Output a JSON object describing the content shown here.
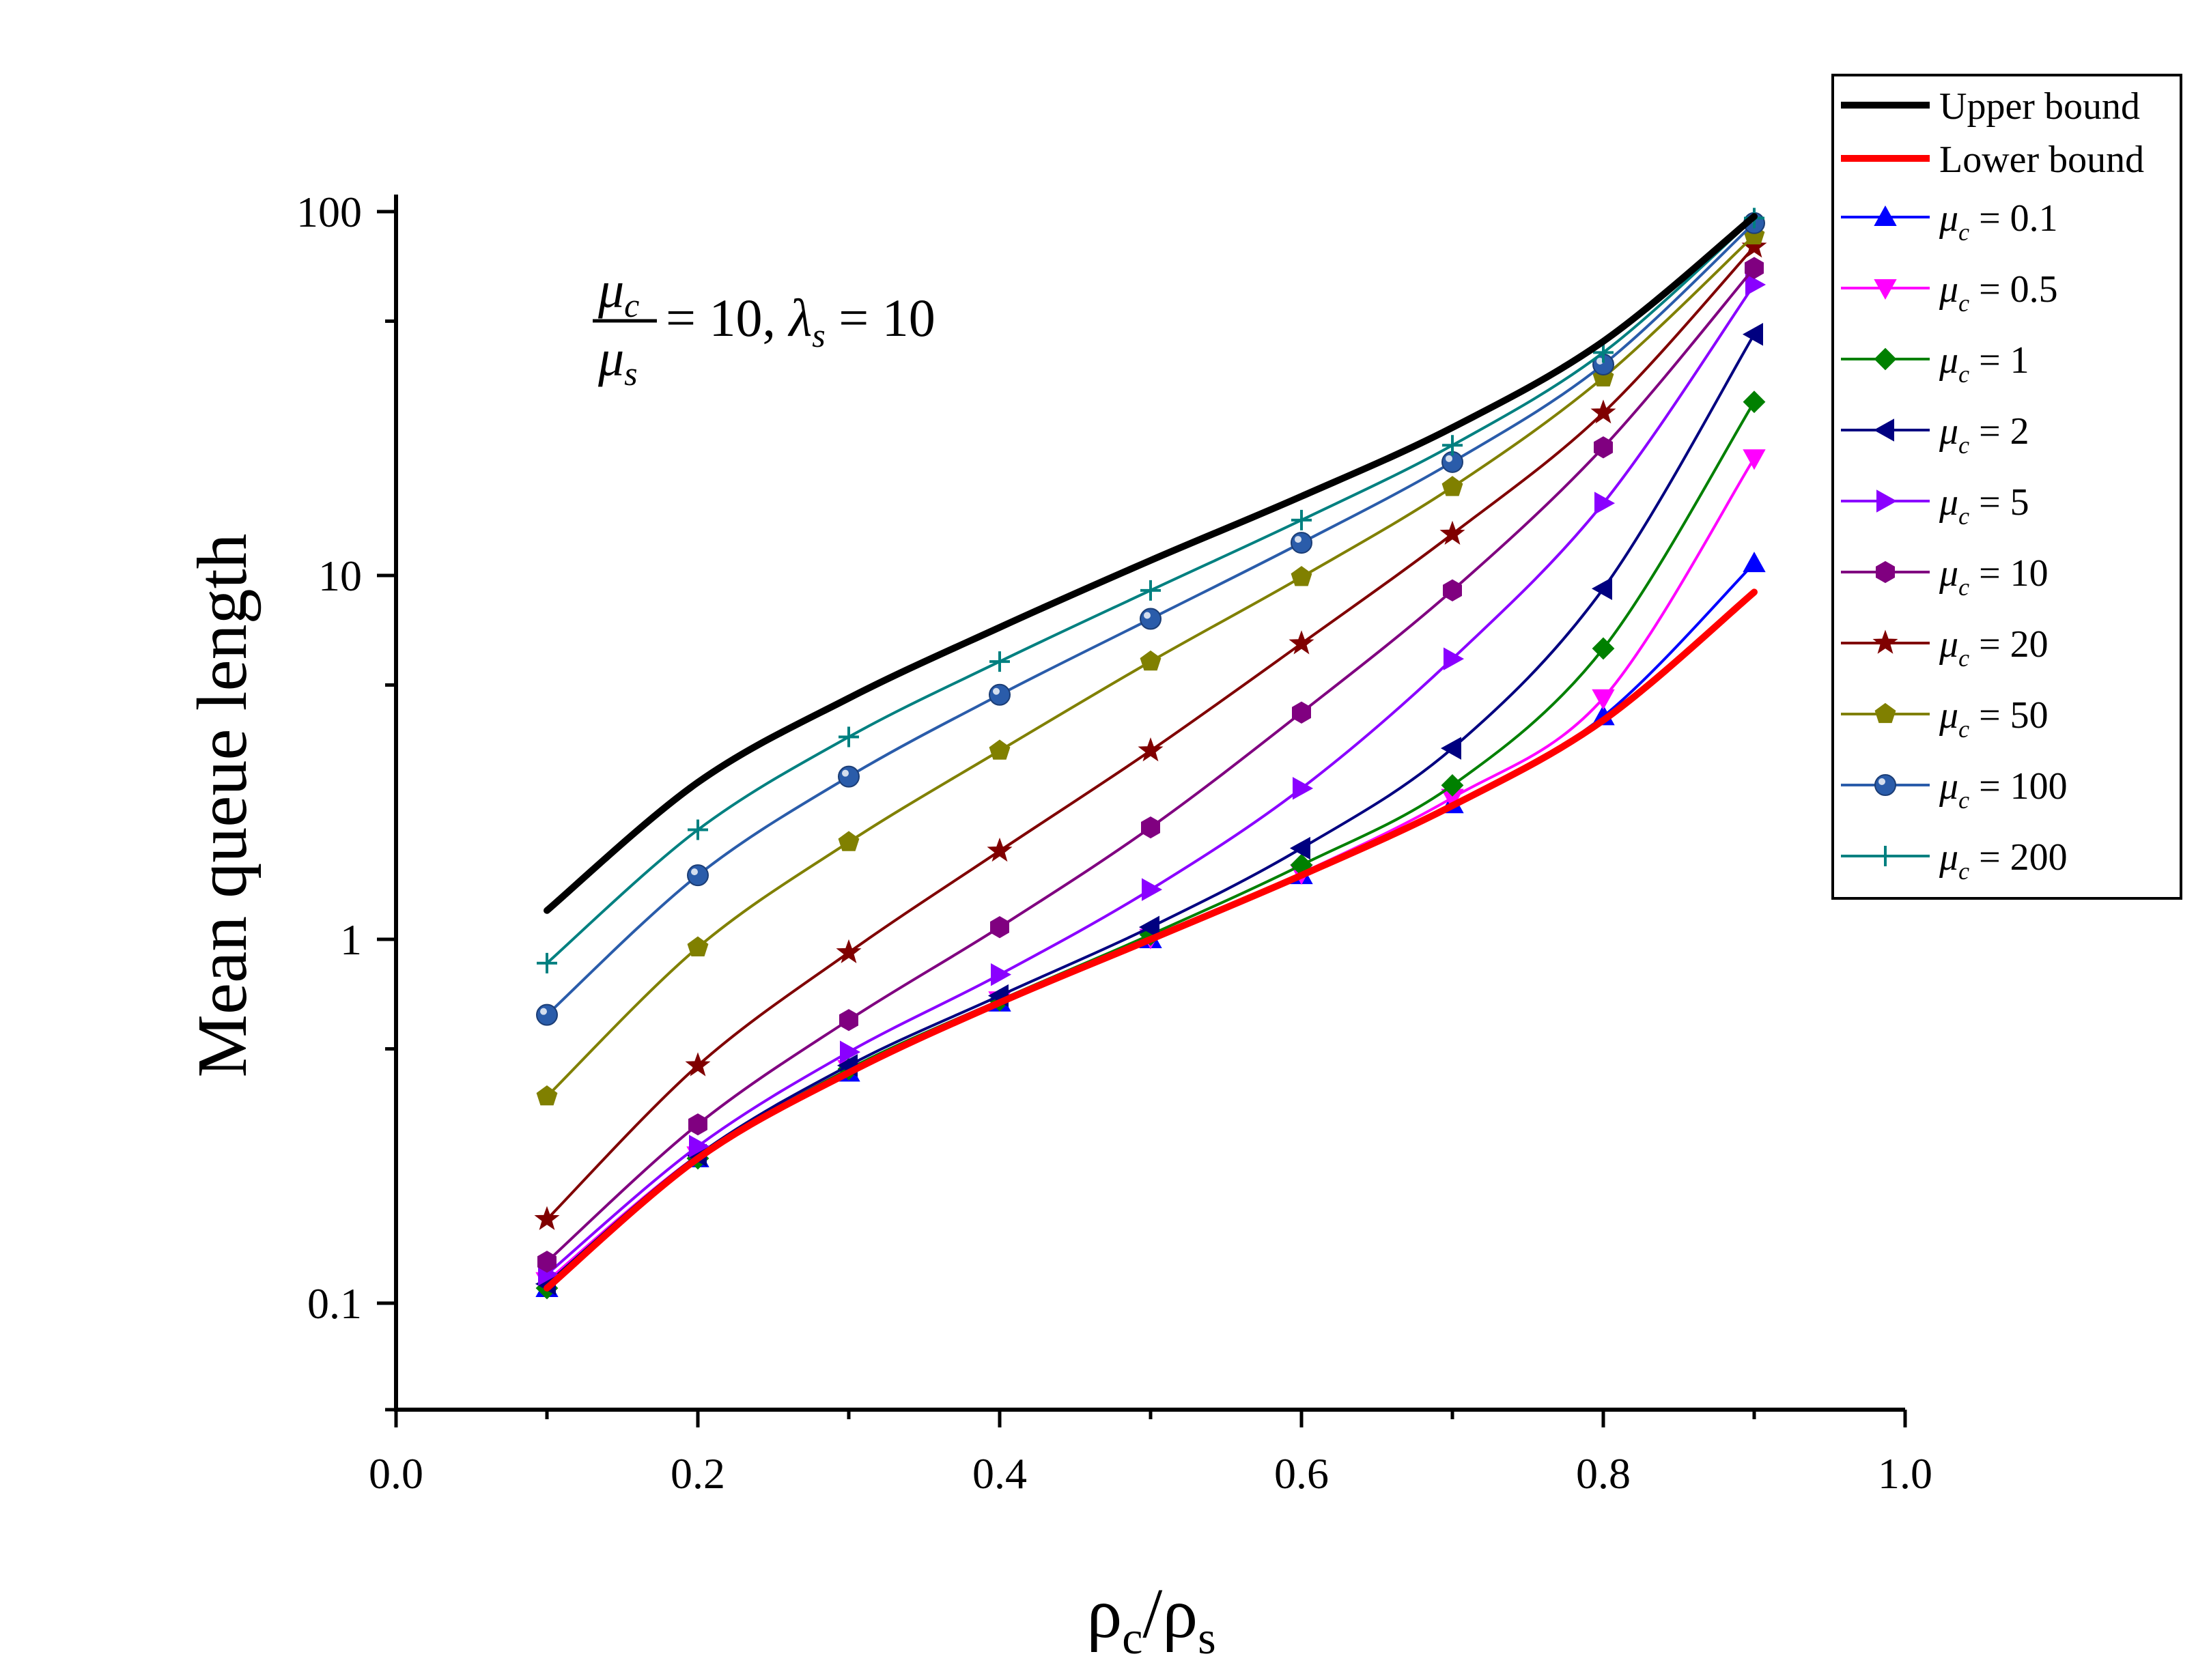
{
  "chart_data": {
    "type": "line",
    "title": "",
    "annotation": {
      "numerator": "μ",
      "numerator_sub": "c",
      "denominator": "μ",
      "denominator_sub": "s",
      "rest": " = 10, ",
      "lambda": "λ",
      "lambda_sub": "s",
      "lambda_rest": " = 10"
    },
    "xlabel": {
      "main": "ρ",
      "sub1": "c",
      "slash": "/ρ",
      "sub2": "s"
    },
    "ylabel": "Mean queue length",
    "xlim": [
      0.0,
      1.0
    ],
    "ylim": [
      0.055,
      110
    ],
    "yscale": "log",
    "x_ticks": [
      "0.0",
      "0.2",
      "0.4",
      "0.6",
      "0.8",
      "1.0"
    ],
    "y_ticks": [
      "0.1",
      "1",
      "10",
      "100"
    ],
    "legend_position": "top-right",
    "x": [
      0.1,
      0.2,
      0.3,
      0.4,
      0.5,
      0.6,
      0.7,
      0.8,
      0.9
    ],
    "series": [
      {
        "name": "Upper bound",
        "label_main": "Upper bound",
        "label_sub": "",
        "label_rest": "",
        "color": "#000000",
        "marker": "none",
        "width": 10,
        "values": [
          1.2,
          2.7,
          4.6,
          7.2,
          11,
          16.5,
          25.5,
          44,
          97
        ]
      },
      {
        "name": "Lower bound",
        "label_main": "Lower bound",
        "label_sub": "",
        "label_rest": "",
        "color": "#ff0000",
        "marker": "none",
        "width": 10,
        "values": [
          0.11,
          0.25,
          0.43,
          0.67,
          1.0,
          1.5,
          2.33,
          4.0,
          9.0
        ]
      },
      {
        "name": "μc = 0.1",
        "label_main": "μ",
        "label_sub": "c",
        "label_rest": " = 0.1",
        "color": "#0000ff",
        "marker": "triangle-up",
        "width": 4,
        "values": [
          0.11,
          0.25,
          0.43,
          0.67,
          1.0,
          1.5,
          2.35,
          4.1,
          10.8
        ]
      },
      {
        "name": "μc = 0.5",
        "label_main": "μ",
        "label_sub": "c",
        "label_rest": " = 0.5",
        "color": "#ff00ff",
        "marker": "triangle-down",
        "width": 4,
        "values": [
          0.115,
          0.255,
          0.44,
          0.68,
          1.01,
          1.52,
          2.45,
          4.6,
          21
        ]
      },
      {
        "name": "μc = 1",
        "label_main": "μ",
        "label_sub": "c",
        "label_rest": " = 1",
        "color": "#008000",
        "marker": "diamond",
        "width": 4,
        "values": [
          0.11,
          0.25,
          0.44,
          0.68,
          1.03,
          1.6,
          2.65,
          6.3,
          30
        ]
      },
      {
        "name": "μc = 2",
        "label_main": "μ",
        "label_sub": "c",
        "label_rest": " = 2",
        "color": "#000080",
        "marker": "triangle-left",
        "width": 4,
        "values": [
          0.113,
          0.255,
          0.45,
          0.7,
          1.08,
          1.78,
          3.35,
          9.2,
          46
        ]
      },
      {
        "name": "μc = 5",
        "label_main": "μ",
        "label_sub": "c",
        "label_rest": " = 5",
        "color": "#8a00ff",
        "marker": "triangle-right",
        "width": 4,
        "values": [
          0.12,
          0.27,
          0.49,
          0.8,
          1.37,
          2.6,
          5.9,
          15.8,
          63
        ]
      },
      {
        "name": "μc = 10",
        "label_main": "μ",
        "label_sub": "c",
        "label_rest": " = 10",
        "color": "#800080",
        "marker": "hexagon",
        "width": 4,
        "values": [
          0.13,
          0.31,
          0.6,
          1.08,
          2.03,
          4.2,
          9.1,
          22.5,
          70
        ]
      },
      {
        "name": "μc = 20",
        "label_main": "μ",
        "label_sub": "c",
        "label_rest": " = 20",
        "color": "#800000",
        "marker": "star",
        "width": 4,
        "values": [
          0.17,
          0.45,
          0.92,
          1.75,
          3.3,
          6.5,
          13,
          28,
          80
        ]
      },
      {
        "name": "μc = 50",
        "label_main": "μ",
        "label_sub": "c",
        "label_rest": " = 50",
        "color": "#808000",
        "marker": "pentagon",
        "width": 4,
        "values": [
          0.37,
          0.95,
          1.85,
          3.3,
          5.8,
          9.9,
          17.5,
          35,
          86
        ]
      },
      {
        "name": "μc = 100",
        "label_main": "μ",
        "label_sub": "c",
        "label_rest": " = 100",
        "color": "#2a5caa",
        "marker": "sphere",
        "width": 4,
        "values": [
          0.62,
          1.5,
          2.8,
          4.7,
          7.6,
          12.3,
          20.5,
          38,
          93
        ]
      },
      {
        "name": "μc = 200",
        "label_main": "μ",
        "label_sub": "c",
        "label_rest": " = 200",
        "color": "#008080",
        "marker": "plus",
        "width": 4,
        "values": [
          0.86,
          2.0,
          3.6,
          5.8,
          9.1,
          14.2,
          22.8,
          41,
          96
        ]
      }
    ]
  }
}
